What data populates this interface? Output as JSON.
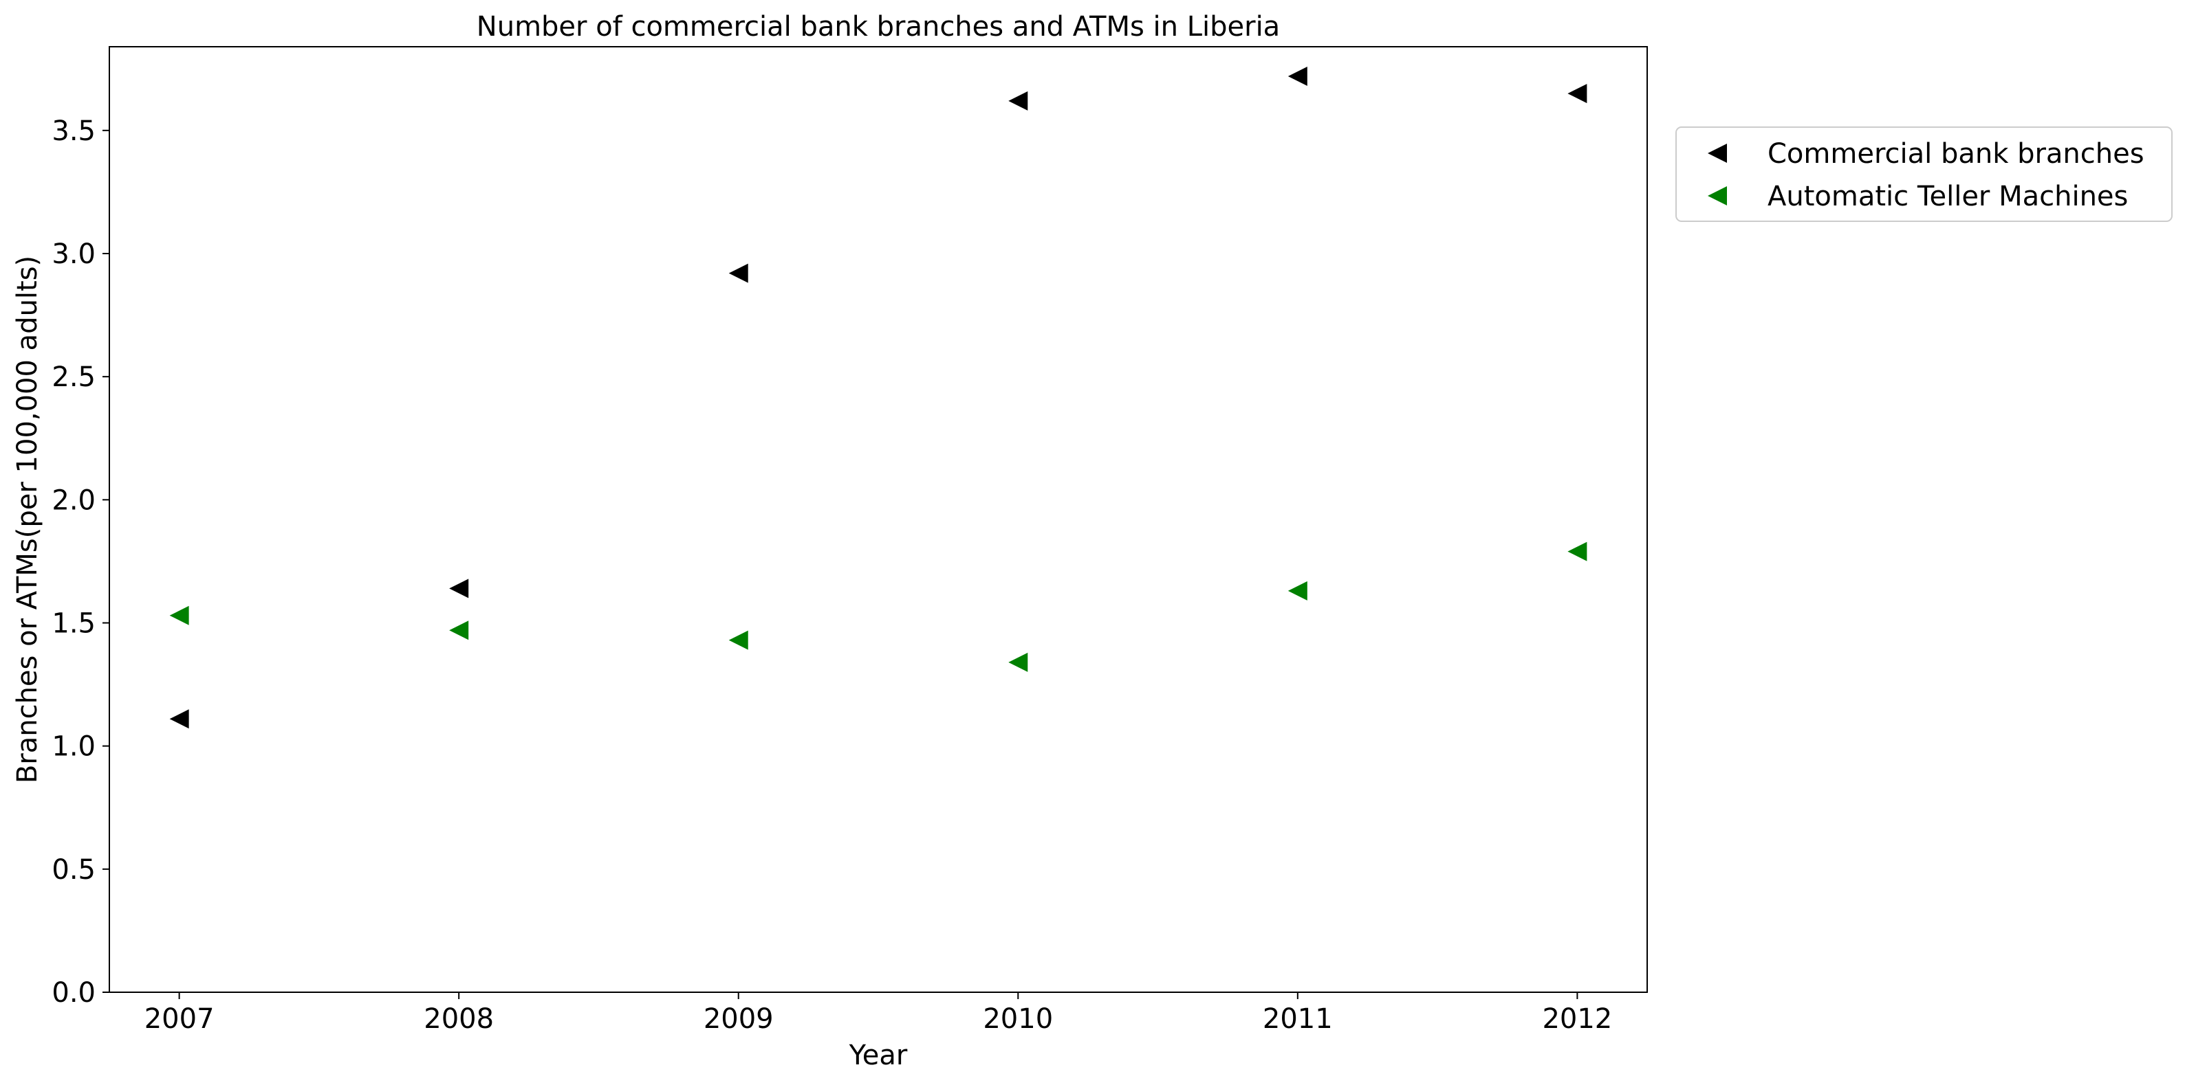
{
  "chart_data": {
    "type": "scatter",
    "title": "Number of commercial bank branches and ATMs in Liberia",
    "xlabel": "Year",
    "ylabel": "Branches or ATMs(per 100,000 adults)",
    "x": [
      "2007",
      "2008",
      "2009",
      "2010",
      "2011",
      "2012"
    ],
    "xlim": [
      2006.75,
      2012.25
    ],
    "ylim": [
      0,
      3.84
    ],
    "yticks": [
      "0.0",
      "0.5",
      "1.0",
      "1.5",
      "2.0",
      "2.5",
      "3.0",
      "3.5"
    ],
    "grid": false,
    "legend_position": "outside-top-right",
    "marker": "triangle-left",
    "series": [
      {
        "name": "Commercial bank branches",
        "color": "#000000",
        "values": [
          1.11,
          1.64,
          2.92,
          3.62,
          3.72,
          3.65
        ]
      },
      {
        "name": "Automatic Teller Machines",
        "color": "#008000",
        "values": [
          1.53,
          1.47,
          1.43,
          1.34,
          1.63,
          1.79
        ]
      }
    ]
  }
}
